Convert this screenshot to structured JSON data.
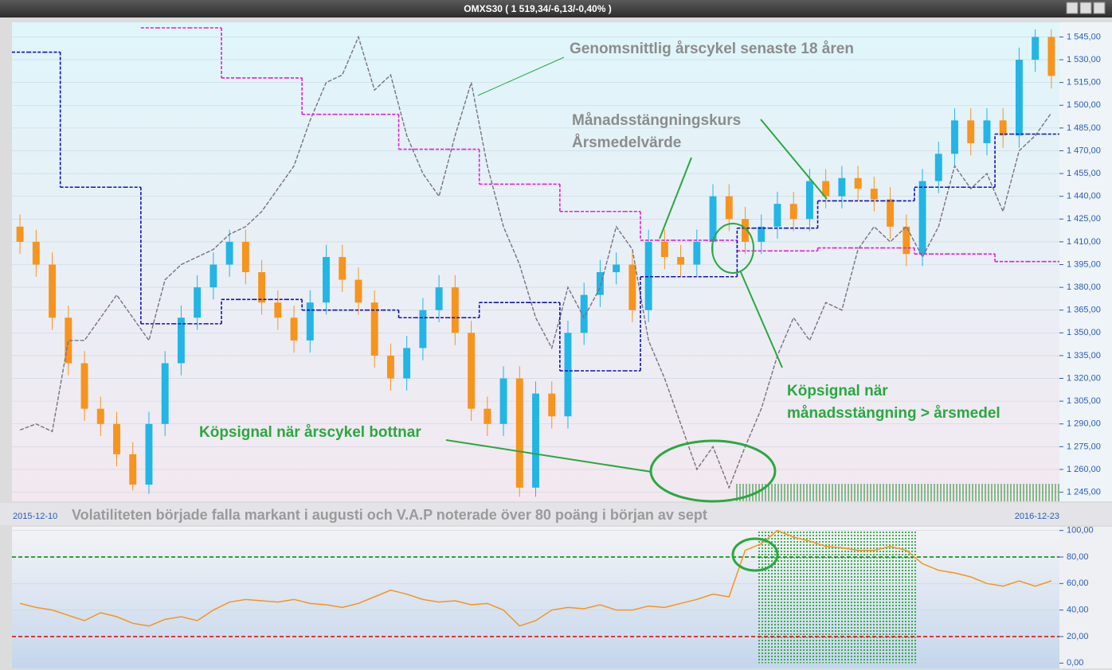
{
  "chart_data": [
    {
      "type": "candlestick",
      "title": "OMXS30 ( 1 519,34/-6,13/-0,40% )",
      "start_label": "2015-12-10",
      "end_label": "2016-12-23",
      "caption": "Volatiliteten började falla markant i augusti och V.A.P noterade över 80 poäng i början av sept",
      "annotations": [
        "Genomsnittlig årscykel senaste 18 åren",
        "Månadsstängningskurs",
        "Årsmedelvärde",
        "Köpsignal när",
        "månadsstängning > årsmedel",
        "Köpsignal när årscykel bottnar"
      ],
      "up_color": "#22b5e6",
      "down_color": "#f7941d",
      "grid": true,
      "ylim": [
        1239,
        1551
      ],
      "yticks": [
        {
          "value": 1245,
          "label": "1 245,00"
        },
        {
          "value": 1260,
          "label": "1 260,00"
        },
        {
          "value": 1275,
          "label": "1 275,00"
        },
        {
          "value": 1290,
          "label": "1 290,00"
        },
        {
          "value": 1305,
          "label": "1 305,00"
        },
        {
          "value": 1320,
          "label": "1 320,00"
        },
        {
          "value": 1335,
          "label": "1 335,00"
        },
        {
          "value": 1350,
          "label": "1 350,00"
        },
        {
          "value": 1365,
          "label": "1 365,00"
        },
        {
          "value": 1380,
          "label": "1 380,00"
        },
        {
          "value": 1395,
          "label": "1 395,00"
        },
        {
          "value": 1410,
          "label": "1 410,00"
        },
        {
          "value": 1425,
          "label": "1 425,00"
        },
        {
          "value": 1440,
          "label": "1 440,00"
        },
        {
          "value": 1455,
          "label": "1 455,00"
        },
        {
          "value": 1470,
          "label": "1 470,00"
        },
        {
          "value": 1485,
          "label": "1 485,00"
        },
        {
          "value": 1500,
          "label": "1 500,00"
        },
        {
          "value": 1515,
          "label": "1 515,00"
        },
        {
          "value": 1530,
          "label": "1 530,00"
        },
        {
          "value": 1545,
          "label": "1 545,00"
        }
      ],
      "open": [
        1420,
        1410,
        1395,
        1360,
        1330,
        1300,
        1290,
        1270,
        1250,
        1290,
        1330,
        1360,
        1380,
        1395,
        1410,
        1390,
        1370,
        1360,
        1345,
        1370,
        1400,
        1385,
        1370,
        1335,
        1320,
        1340,
        1365,
        1380,
        1350,
        1300,
        1290,
        1320,
        1248,
        1310,
        1295,
        1350,
        1375,
        1390,
        1395,
        1365,
        1410,
        1400,
        1395,
        1410,
        1440,
        1425,
        1410,
        1420,
        1435,
        1425,
        1450,
        1440,
        1452,
        1445,
        1438,
        1420,
        1402,
        1450,
        1468,
        1490,
        1475,
        1490,
        1480,
        1530,
        1545
      ],
      "high": [
        1428,
        1418,
        1403,
        1368,
        1338,
        1308,
        1298,
        1278,
        1298,
        1338,
        1368,
        1388,
        1403,
        1418,
        1418,
        1398,
        1378,
        1368,
        1378,
        1408,
        1408,
        1393,
        1378,
        1343,
        1348,
        1373,
        1388,
        1388,
        1358,
        1308,
        1328,
        1328,
        1318,
        1318,
        1358,
        1383,
        1398,
        1403,
        1403,
        1418,
        1418,
        1408,
        1418,
        1448,
        1448,
        1433,
        1428,
        1443,
        1443,
        1458,
        1458,
        1460,
        1460,
        1453,
        1446,
        1428,
        1458,
        1476,
        1498,
        1498,
        1498,
        1498,
        1538,
        1550,
        1550
      ],
      "low": [
        1402,
        1387,
        1352,
        1322,
        1292,
        1282,
        1262,
        1246,
        1244,
        1282,
        1322,
        1352,
        1372,
        1387,
        1382,
        1362,
        1352,
        1337,
        1337,
        1362,
        1377,
        1362,
        1327,
        1312,
        1312,
        1332,
        1357,
        1342,
        1292,
        1282,
        1282,
        1242,
        1242,
        1287,
        1287,
        1342,
        1367,
        1382,
        1357,
        1357,
        1392,
        1387,
        1387,
        1402,
        1417,
        1402,
        1402,
        1412,
        1417,
        1417,
        1432,
        1432,
        1437,
        1430,
        1412,
        1394,
        1394,
        1442,
        1460,
        1467,
        1467,
        1472,
        1472,
        1522,
        1511
      ],
      "close": [
        1410,
        1395,
        1360,
        1330,
        1300,
        1290,
        1270,
        1250,
        1290,
        1330,
        1360,
        1380,
        1395,
        1410,
        1390,
        1370,
        1360,
        1345,
        1370,
        1400,
        1385,
        1370,
        1335,
        1320,
        1340,
        1365,
        1380,
        1350,
        1300,
        1290,
        1320,
        1248,
        1310,
        1295,
        1350,
        1375,
        1390,
        1395,
        1365,
        1410,
        1400,
        1395,
        1410,
        1440,
        1425,
        1410,
        1420,
        1435,
        1425,
        1450,
        1440,
        1452,
        1445,
        1438,
        1420,
        1402,
        1450,
        1468,
        1490,
        1475,
        1490,
        1480,
        1530,
        1545,
        1519.34
      ],
      "overlays": [
        {
          "style": "line",
          "color": "#7a7080",
          "values": [
            1286,
            1290,
            1285,
            1345,
            1345,
            1360,
            1375,
            1360,
            1345,
            1385,
            1395,
            1400,
            1405,
            1415,
            1420,
            1430,
            1445,
            1460,
            1490,
            1515,
            1520,
            1545,
            1510,
            1520,
            1480,
            1455,
            1440,
            1480,
            1515,
            1460,
            1420,
            1395,
            1360,
            1340,
            1380,
            1360,
            1380,
            1420,
            1405,
            1345,
            1320,
            1290,
            1260,
            1275,
            1248,
            1275,
            1300,
            1335,
            1360,
            1345,
            1370,
            1365,
            1405,
            1420,
            1410,
            1420,
            1400,
            1420,
            1460,
            1445,
            1455,
            1430,
            1470,
            1480,
            1495
          ]
        },
        {
          "style": "step",
          "color": "#e020d0",
          "values": [
            null,
            null,
            null,
            null,
            null,
            null,
            null,
            null,
            1551,
            1551,
            1551,
            1551,
            1551,
            1518,
            1518,
            1518,
            1518,
            1518,
            1494,
            1494,
            1494,
            1494,
            1494,
            1494,
            1471,
            1471,
            1471,
            1471,
            1471,
            1448,
            1448,
            1448,
            1448,
            1448,
            1430,
            1430,
            1430,
            1430,
            1430,
            1411,
            1411,
            1411,
            1411,
            1411,
            1411,
            1404,
            1404,
            1404,
            1404,
            1404,
            1406,
            1406,
            1406,
            1406,
            1406,
            1406,
            1402,
            1402,
            1402,
            1402,
            1402,
            1397,
            1397,
            1397,
            1397
          ]
        },
        {
          "style": "step",
          "color": "#1010b0",
          "values": [
            1535,
            1535,
            1535,
            1446,
            1446,
            1446,
            1446,
            1446,
            1356,
            1356,
            1356,
            1356,
            1356,
            1372,
            1372,
            1372,
            1372,
            1372,
            1365,
            1365,
            1365,
            1365,
            1365,
            1365,
            1360,
            1360,
            1360,
            1360,
            1360,
            1370,
            1370,
            1370,
            1370,
            1370,
            1325,
            1325,
            1325,
            1325,
            1325,
            1387,
            1387,
            1387,
            1387,
            1387,
            1387,
            1419,
            1419,
            1419,
            1419,
            1419,
            1437,
            1437,
            1437,
            1437,
            1437,
            1437,
            1446,
            1446,
            1446,
            1446,
            1446,
            1481,
            1481,
            1481,
            1481
          ]
        }
      ]
    },
    {
      "type": "line",
      "color": "#f7941d",
      "grid": true,
      "ylim": [
        -4,
        104
      ],
      "yticks": [
        {
          "value": 0,
          "label": "0,00"
        },
        {
          "value": 20,
          "label": "20,00"
        },
        {
          "value": 40,
          "label": "40,00"
        },
        {
          "value": 60,
          "label": "60,00"
        },
        {
          "value": 80,
          "label": "80,00"
        },
        {
          "value": 100,
          "label": "100,00"
        }
      ],
      "hlines": [
        {
          "value": 80,
          "color": "#008000"
        },
        {
          "value": 20,
          "color": "#e00000"
        }
      ],
      "values": [
        45,
        42,
        40,
        36,
        32,
        38,
        35,
        30,
        28,
        33,
        35,
        32,
        40,
        46,
        48,
        47,
        46,
        48,
        45,
        44,
        42,
        45,
        50,
        55,
        52,
        48,
        46,
        47,
        44,
        45,
        40,
        28,
        32,
        40,
        42,
        41,
        44,
        40,
        40,
        43,
        42,
        45,
        48,
        52,
        50,
        85,
        90,
        100,
        95,
        92,
        88,
        87,
        85,
        85,
        88,
        85,
        75,
        70,
        68,
        65,
        60,
        58,
        62,
        58,
        62
      ]
    }
  ]
}
